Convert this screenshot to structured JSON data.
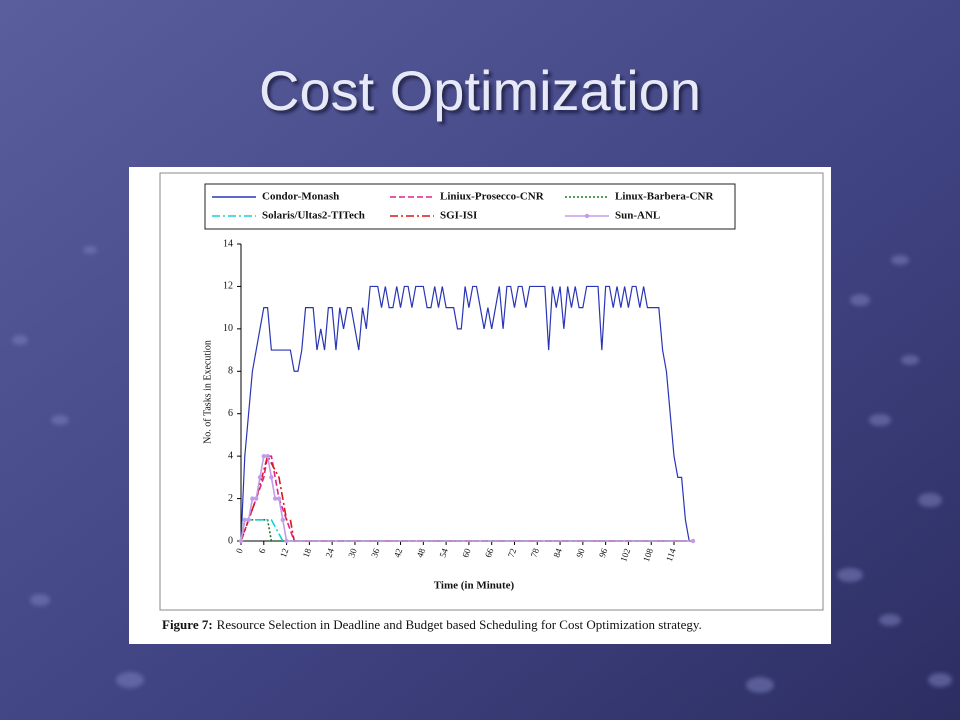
{
  "slide": {
    "title": "Cost Optimization"
  },
  "chart_data": {
    "type": "line",
    "xlabel": "Time (in Minute)",
    "ylabel": "No. of Tasks in Execution",
    "caption_label": "Figure 7:",
    "caption": "Resource Selection in Deadline and Budget based Scheduling for Cost Optimization strategy.",
    "xlim": [
      0,
      119
    ],
    "ylim": [
      0,
      14
    ],
    "xticks": [
      0,
      6,
      12,
      18,
      24,
      30,
      36,
      42,
      48,
      54,
      60,
      66,
      72,
      78,
      84,
      90,
      96,
      102,
      108,
      114
    ],
    "yticks": [
      0,
      2,
      4,
      6,
      8,
      10,
      12,
      14
    ],
    "series": [
      {
        "name": "Condor-Monash",
        "color": "#2a35b5",
        "style": "solid",
        "x": [
          0,
          1,
          2,
          3,
          4,
          5,
          6,
          7,
          8,
          9,
          10,
          11,
          12,
          13,
          14,
          15,
          16,
          17,
          18,
          19,
          20,
          21,
          22,
          23,
          24,
          25,
          26,
          27,
          28,
          29,
          30,
          31,
          32,
          33,
          34,
          35,
          36,
          37,
          38,
          39,
          40,
          41,
          42,
          43,
          44,
          45,
          46,
          47,
          48,
          49,
          50,
          51,
          52,
          53,
          54,
          55,
          56,
          57,
          58,
          59,
          60,
          61,
          62,
          63,
          64,
          65,
          66,
          67,
          68,
          69,
          70,
          71,
          72,
          73,
          74,
          75,
          76,
          77,
          78,
          79,
          80,
          81,
          82,
          83,
          84,
          85,
          86,
          87,
          88,
          89,
          90,
          91,
          92,
          93,
          94,
          95,
          96,
          97,
          98,
          99,
          100,
          101,
          102,
          103,
          104,
          105,
          106,
          107,
          108,
          109,
          110,
          111,
          112,
          113,
          114,
          115,
          116,
          117,
          118
        ],
        "values": [
          0,
          4,
          6,
          8,
          9,
          10,
          11,
          11,
          9,
          9,
          9,
          9,
          9,
          9,
          8,
          8,
          9,
          11,
          11,
          11,
          9,
          10,
          9,
          11,
          11,
          9,
          11,
          10,
          11,
          11,
          10,
          9,
          11,
          10,
          12,
          12,
          12,
          11,
          12,
          11,
          11,
          12,
          11,
          12,
          12,
          11,
          12,
          12,
          12,
          11,
          11,
          12,
          11,
          12,
          11,
          11,
          11,
          10,
          10,
          12,
          11,
          12,
          12,
          11,
          10,
          11,
          10,
          11,
          12,
          10,
          12,
          12,
          11,
          12,
          12,
          11,
          12,
          12,
          12,
          12,
          12,
          9,
          12,
          11,
          12,
          10,
          12,
          11,
          12,
          11,
          11,
          12,
          12,
          12,
          12,
          9,
          12,
          12,
          11,
          12,
          11,
          12,
          11,
          12,
          12,
          11,
          12,
          11,
          11,
          11,
          11,
          9,
          8,
          6,
          4,
          3,
          3,
          1,
          0
        ]
      },
      {
        "name": "Liniux-Prosecco-CNR",
        "color": "#e0208c",
        "style": "dashed",
        "x": [
          0,
          2,
          4,
          6,
          7,
          8,
          10,
          12,
          14,
          119
        ],
        "values": [
          0,
          1,
          2,
          3,
          4,
          4,
          2,
          1,
          0,
          0
        ]
      },
      {
        "name": "Linux-Barbera-CNR",
        "color": "#1a7a2a",
        "style": "dotted",
        "x": [
          0,
          1,
          7,
          8,
          119
        ],
        "values": [
          0,
          1,
          1,
          0,
          0
        ]
      },
      {
        "name": "Solaris/Ultas2-TITech",
        "color": "#14d0d8",
        "style": "dashdot",
        "x": [
          0,
          1,
          8,
          11,
          119
        ],
        "values": [
          0,
          1,
          1,
          0,
          0
        ]
      },
      {
        "name": "SGI-ISI",
        "color": "#d81818",
        "style": "dashdot",
        "x": [
          0,
          2,
          4,
          7,
          10,
          12,
          13,
          14,
          119
        ],
        "values": [
          0,
          1,
          2,
          4,
          3,
          1,
          1,
          0,
          0
        ]
      },
      {
        "name": "Sun-ANL",
        "color": "#c39be8",
        "style": "marker",
        "x": [
          0,
          1,
          2,
          3,
          4,
          5,
          6,
          7,
          8,
          9,
          10,
          11,
          12,
          119
        ],
        "values": [
          0,
          1,
          1,
          2,
          2,
          3,
          4,
          4,
          3,
          2,
          2,
          1,
          0,
          0
        ]
      }
    ]
  }
}
